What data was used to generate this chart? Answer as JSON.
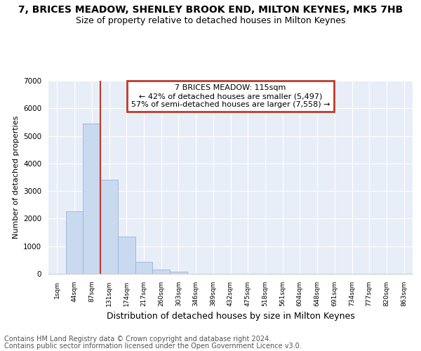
{
  "title": "7, BRICES MEADOW, SHENLEY BROOK END, MILTON KEYNES, MK5 7HB",
  "subtitle": "Size of property relative to detached houses in Milton Keynes",
  "xlabel": "Distribution of detached houses by size in Milton Keynes",
  "ylabel": "Number of detached properties",
  "categories": [
    "1sqm",
    "44sqm",
    "87sqm",
    "131sqm",
    "174sqm",
    "217sqm",
    "260sqm",
    "303sqm",
    "346sqm",
    "389sqm",
    "432sqm",
    "475sqm",
    "518sqm",
    "561sqm",
    "604sqm",
    "648sqm",
    "691sqm",
    "734sqm",
    "777sqm",
    "820sqm",
    "863sqm"
  ],
  "values": [
    0,
    2270,
    5450,
    3400,
    1340,
    430,
    160,
    70,
    10,
    0,
    0,
    0,
    0,
    0,
    0,
    0,
    0,
    0,
    0,
    0,
    0
  ],
  "bar_color": "#c9d9f0",
  "bar_edge_color": "#9ab4d8",
  "highlight_bar_index": 2,
  "highlight_color": "#c0392b",
  "annotation_title": "7 BRICES MEADOW: 115sqm",
  "annotation_line1": "← 42% of detached houses are smaller (5,497)",
  "annotation_line2": "57% of semi-detached houses are larger (7,558) →",
  "annotation_box_color": "#c0392b",
  "ylim": [
    0,
    7000
  ],
  "yticks": [
    0,
    1000,
    2000,
    3000,
    4000,
    5000,
    6000,
    7000
  ],
  "footer_line1": "Contains HM Land Registry data © Crown copyright and database right 2024.",
  "footer_line2": "Contains public sector information licensed under the Open Government Licence v3.0.",
  "background_color": "#e8eef8",
  "title_fontsize": 10,
  "subtitle_fontsize": 9,
  "xlabel_fontsize": 9,
  "ylabel_fontsize": 8,
  "footer_fontsize": 7
}
